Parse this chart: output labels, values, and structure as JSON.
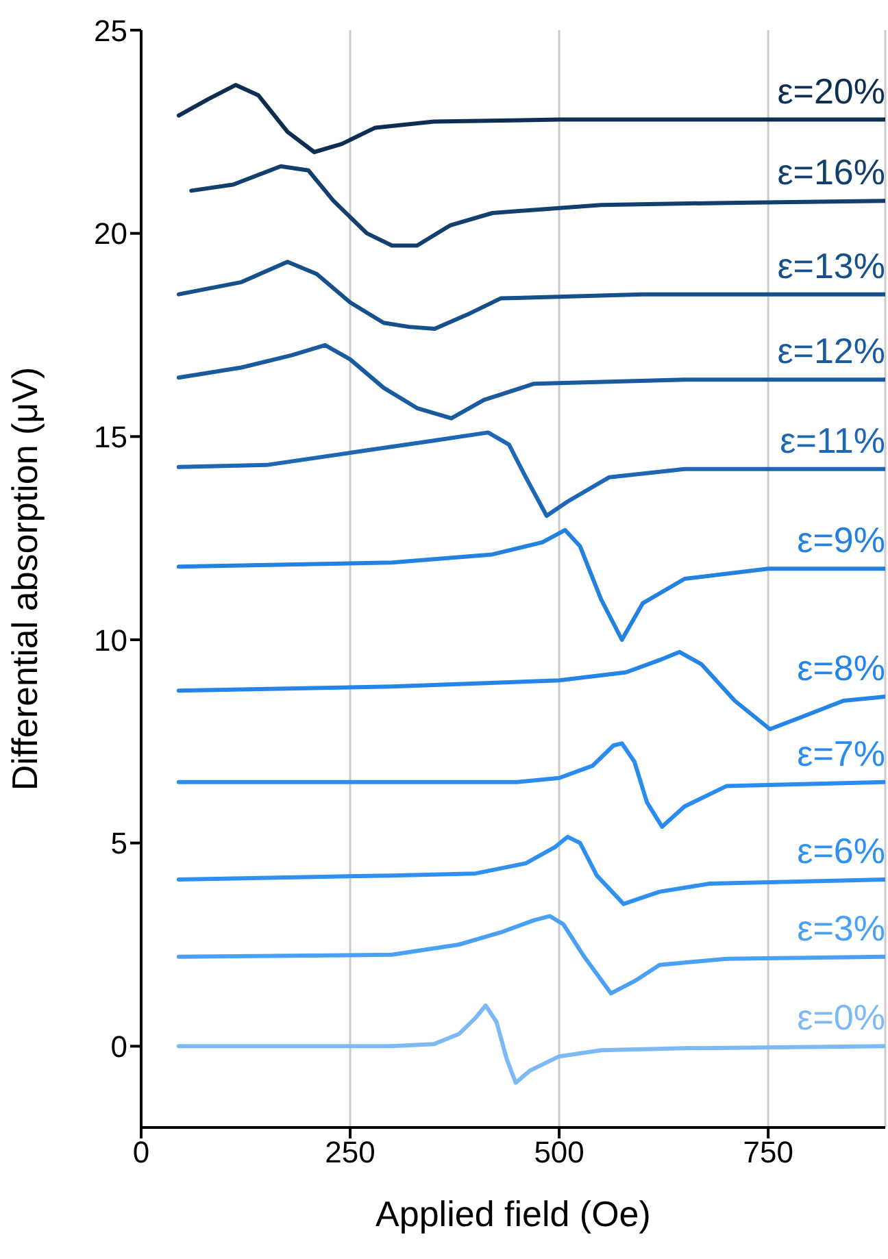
{
  "chart_data": {
    "type": "line",
    "xlabel": "Applied field (Oe)",
    "ylabel": "Differential absorption (μV)",
    "xlim": [
      0,
      890
    ],
    "xticks": [
      0,
      250,
      500,
      750
    ],
    "ylim": [
      -2,
      25
    ],
    "yticks": [
      0,
      5,
      10,
      15,
      20,
      25
    ],
    "grid": "x",
    "series": [
      {
        "name": "ε=20%",
        "color": "#0d2d52",
        "x": [
          45,
          80,
          113,
          140,
          175,
          207,
          240,
          280,
          350,
          500,
          700,
          890
        ],
        "values": [
          22.9,
          23.3,
          23.65,
          23.4,
          22.5,
          22.0,
          22.2,
          22.6,
          22.75,
          22.8,
          22.8,
          22.8
        ]
      },
      {
        "name": "ε=16%",
        "color": "#123f6e",
        "x": [
          60,
          110,
          167,
          200,
          230,
          270,
          300,
          330,
          370,
          420,
          550,
          700,
          890
        ],
        "values": [
          21.05,
          21.2,
          21.65,
          21.55,
          20.8,
          20.0,
          19.7,
          19.7,
          20.2,
          20.5,
          20.7,
          20.75,
          20.8
        ]
      },
      {
        "name": "ε=13%",
        "color": "#16508a",
        "x": [
          45,
          120,
          175,
          210,
          250,
          290,
          320,
          351,
          390,
          430,
          600,
          890
        ],
        "values": [
          18.5,
          18.8,
          19.3,
          19.0,
          18.3,
          17.8,
          17.7,
          17.65,
          18.0,
          18.4,
          18.5,
          18.5
        ]
      },
      {
        "name": "ε=12%",
        "color": "#1a5a9e",
        "x": [
          45,
          120,
          180,
          220,
          250,
          290,
          330,
          371,
          410,
          470,
          650,
          890
        ],
        "values": [
          16.45,
          16.7,
          17.0,
          17.25,
          16.9,
          16.2,
          15.7,
          15.45,
          15.9,
          16.3,
          16.4,
          16.4
        ]
      },
      {
        "name": "ε=11%",
        "color": "#1d67b5",
        "x": [
          45,
          150,
          250,
          350,
          415,
          440,
          460,
          485,
          510,
          560,
          650,
          890
        ],
        "values": [
          14.25,
          14.3,
          14.6,
          14.9,
          15.1,
          14.8,
          14.0,
          13.05,
          13.4,
          14.0,
          14.2,
          14.2
        ]
      },
      {
        "name": "ε=9%",
        "color": "#2382e0",
        "x": [
          45,
          300,
          420,
          480,
          507,
          525,
          550,
          575,
          600,
          650,
          750,
          890
        ],
        "values": [
          11.8,
          11.9,
          12.1,
          12.4,
          12.7,
          12.3,
          11.0,
          10.0,
          10.9,
          11.5,
          11.75,
          11.75
        ]
      },
      {
        "name": "ε=8%",
        "color": "#2585e6",
        "x": [
          45,
          300,
          500,
          580,
          620,
          644,
          670,
          710,
          752,
          790,
          840,
          890
        ],
        "values": [
          8.75,
          8.85,
          9.0,
          9.2,
          9.5,
          9.7,
          9.4,
          8.5,
          7.8,
          8.1,
          8.5,
          8.6
        ]
      },
      {
        "name": "ε=7%",
        "color": "#2a8cef",
        "x": [
          45,
          450,
          500,
          540,
          565,
          575,
          590,
          605,
          623,
          650,
          700,
          890
        ],
        "values": [
          6.5,
          6.5,
          6.6,
          6.9,
          7.4,
          7.45,
          7.0,
          6.0,
          5.4,
          5.9,
          6.4,
          6.5
        ]
      },
      {
        "name": "ε=6%",
        "color": "#3090f0",
        "x": [
          45,
          300,
          400,
          460,
          495,
          510,
          525,
          545,
          577,
          620,
          680,
          890
        ],
        "values": [
          4.1,
          4.2,
          4.25,
          4.5,
          4.9,
          5.15,
          5.0,
          4.2,
          3.5,
          3.8,
          4.0,
          4.1
        ]
      },
      {
        "name": "ε=3%",
        "color": "#4aa0f2",
        "x": [
          45,
          300,
          380,
          430,
          470,
          489,
          505,
          530,
          562,
          590,
          620,
          700,
          890
        ],
        "values": [
          2.2,
          2.25,
          2.5,
          2.8,
          3.1,
          3.2,
          3.0,
          2.2,
          1.3,
          1.6,
          2.0,
          2.15,
          2.2
        ]
      },
      {
        "name": "ε=0%",
        "color": "#7db9f5",
        "x": [
          45,
          300,
          350,
          380,
          400,
          412,
          425,
          437,
          448,
          465,
          500,
          550,
          650,
          890
        ],
        "values": [
          0,
          0,
          0.05,
          0.3,
          0.7,
          1.0,
          0.6,
          -0.3,
          -0.9,
          -0.6,
          -0.25,
          -0.1,
          -0.05,
          0
        ]
      }
    ]
  }
}
